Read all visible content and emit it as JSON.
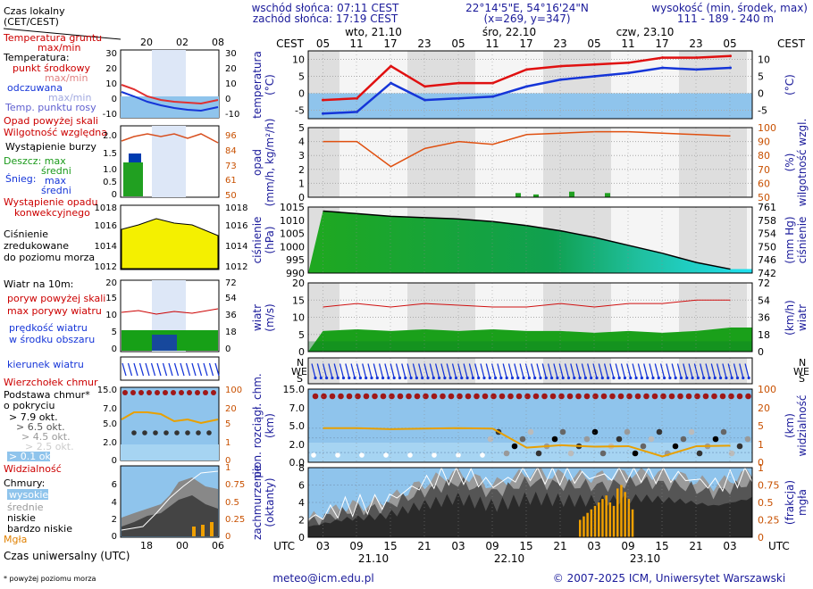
{
  "header": {
    "sunrise": "wschód słońca: 07:11 CEST",
    "sunset": "zachód słońca: 17:19 CEST",
    "coords": "22°14'5\"E, 54°16'24\"N",
    "grid": "(x=269, y=347)",
    "altitude_title": "wysokość (min, środek, max)",
    "altitude_values": "111 - 189 - 240 m"
  },
  "legend": {
    "time_local": "Czas lokalny",
    "time_local_sub": "(CET/CEST)",
    "ground_temp": "Temperatura gruntu",
    "ground_temp_sub": "max/min",
    "temperature": "Temperatura:",
    "mid_point": "punkt środkowy",
    "maxmin": "max/min",
    "feels_like": "odczuwana",
    "maxmin2": "max/min",
    "dew_point": "Temp. punktu rosy",
    "rain_above": "Opad powyżej skali",
    "humidity": "Wilgotność względna",
    "storm": "Wystąpienie burzy",
    "rain_max": "Deszcz: max",
    "rain_mean": "średni",
    "snow_max": "max",
    "snow_label": "Śnieg:",
    "snow_mean": "średni",
    "conv_rain_1": "Wystąpienie opadu",
    "conv_rain_2": "konwekcyjnego",
    "pressure_1": "Ciśnienie",
    "pressure_2": "zredukowane",
    "pressure_3": "do poziomu morza",
    "wind_title": "Wiatr na 10m:",
    "gust_above": "poryw powyżej skali",
    "gust_max": "max porywy wiatru",
    "wind_speed_1": "prędkość wiatru",
    "wind_speed_2": "w środku obszaru",
    "wind_dir": "kierunek wiatru",
    "cloud_top": "Wierzchołek chmur",
    "cloud_base_1": "Podstawa chmur*",
    "cloud_base_2": "o pokryciu",
    "okt1": "> 7.9 okt.",
    "okt2": "> 6.5 okt.",
    "okt3": "> 4.5 okt.",
    "okt4": "> 2.5 okt.",
    "okt5": "> 0.1 okt.",
    "visibility": "Widzialność",
    "clouds": "Chmury:",
    "high": "wysokie",
    "mid": "średnie",
    "low": "niskie",
    "very_low": "bardzo niskie",
    "fog": "Mgła",
    "utc": "Czas uniwersalny (UTC)",
    "footnote": "* powyżej poziomu morza",
    "mini_top_ticks": [
      "20",
      "02",
      "08"
    ],
    "mini_bottom_ticks": [
      "18",
      "00",
      "06"
    ]
  },
  "footer": {
    "email": "meteo@icm.edu.pl",
    "copyright": "© 2007-2025 ICM, Uniwersytet Warszawski"
  },
  "axis_top": {
    "label": "CEST",
    "hours": [
      "05",
      "11",
      "17",
      "23",
      "05",
      "11",
      "17",
      "23",
      "05",
      "11",
      "17",
      "23",
      "05"
    ],
    "days": [
      "wto, 21.10",
      "śro, 22.10",
      "czw, 23.10"
    ]
  },
  "axis_bottom": {
    "label": "UTC",
    "hours": [
      "03",
      "09",
      "15",
      "21",
      "03",
      "09",
      "15",
      "21",
      "03",
      "09",
      "15",
      "21",
      "03"
    ],
    "days": [
      "21.10",
      "22.10",
      "23.10"
    ]
  },
  "panels": {
    "temp": {
      "ylabel": "temperatura",
      "unit": "(°C)",
      "ticks": [
        "10",
        "5",
        "0",
        "-5"
      ]
    },
    "rain": {
      "ylabel": "opad",
      "unit": "(mm/h, kg/m²/h)",
      "ticks": [
        "5",
        "4",
        "3",
        "2",
        "1",
        "0"
      ],
      "right_label": "wilgotność wzgl.",
      "right_unit": "(%)",
      "right_ticks": [
        "100",
        "90",
        "80",
        "70",
        "60",
        "50"
      ]
    },
    "press": {
      "ylabel": "ciśnienie",
      "unit": "(hPa)",
      "ticks": [
        "1015",
        "1010",
        "1005",
        "1000",
        "995",
        "990"
      ],
      "right_label": "ciśnienie",
      "right_unit": "(mm Hg)",
      "right_ticks": [
        "761",
        "758",
        "754",
        "750",
        "746",
        "742"
      ]
    },
    "wind": {
      "ylabel": "wiatr",
      "unit": "(m/s)",
      "ticks": [
        "20",
        "15",
        "10",
        "5",
        "0"
      ],
      "right_label": "wiatr",
      "right_unit": "(km/h)",
      "right_ticks": [
        "72",
        "54",
        "36",
        "18",
        "0"
      ]
    },
    "cloudb": {
      "ylabel": "pion. rozciągł. chm.",
      "unit": "(km)",
      "ticks": [
        "15.0",
        "7.0",
        "5.0",
        "2.0",
        "0.0"
      ],
      "right_label": "widzialność",
      "right_unit": "(km)",
      "right_ticks": [
        "100",
        "20",
        "5",
        "1",
        "0"
      ]
    },
    "cover": {
      "ylabel": "zachmurzenie",
      "unit": "(oktanty)",
      "ticks": [
        "8",
        "6",
        "4",
        "2",
        "0"
      ],
      "right_label": "mgła",
      "right_unit": "(frakcja)",
      "right_ticks": [
        "1",
        "0.75",
        "0.5",
        "0.25",
        "0"
      ]
    }
  },
  "chart_data": [
    {
      "type": "line",
      "title": "temperatura",
      "ylabel": "(°C)",
      "ylim": [
        -7.5,
        12.5
      ],
      "x": [
        "21.10 03",
        "21.10 09",
        "21.10 15",
        "21.10 21",
        "22.10 03",
        "22.10 09",
        "22.10 15",
        "22.10 21",
        "23.10 03",
        "23.10 09",
        "23.10 15",
        "23.10 21",
        "24.10 03"
      ],
      "series": [
        {
          "values": [
            -2,
            -1.5,
            8,
            2,
            3,
            3,
            7,
            8,
            8.5,
            9,
            10.5,
            10.5,
            11
          ]
        },
        {
          "values": [
            -6,
            -5.5,
            3,
            -2,
            -1.5,
            -1,
            2,
            4,
            5,
            6,
            7.5,
            7,
            7.5
          ]
        }
      ]
    },
    {
      "type": "bar",
      "title": "opad",
      "ylabel": "(mm/h, kg/m²/h)",
      "ylim": [
        0,
        5
      ],
      "x": [
        "22.10 11",
        "22.10 17",
        "22.10 23",
        "23.10 05"
      ],
      "series": [
        {
          "values": [
            0.3,
            0.2,
            0.4,
            0.3
          ]
        }
      ]
    },
    {
      "type": "line",
      "title": "wilgotność",
      "ylabel": "(%)",
      "ylim": [
        50,
        100
      ],
      "x": [
        "21.10 03",
        "21.10 09",
        "21.10 15",
        "21.10 21",
        "22.10 03",
        "22.10 09",
        "22.10 15",
        "22.10 21",
        "23.10 03",
        "23.10 09",
        "23.10 15",
        "23.10 21",
        "24.10 03"
      ],
      "series": [
        {
          "values": [
            90,
            90,
            72,
            85,
            90,
            88,
            95,
            96,
            97,
            97,
            96,
            95,
            94
          ]
        }
      ]
    },
    {
      "type": "area",
      "title": "ciśnienie",
      "ylabel": "(hPa)",
      "ylim": [
        990,
        1015
      ],
      "x": [
        "21.10 03",
        "21.10 09",
        "21.10 15",
        "21.10 21",
        "22.10 03",
        "22.10 09",
        "22.10 15",
        "22.10 21",
        "23.10 03",
        "23.10 09",
        "23.10 15",
        "23.10 21",
        "24.10 03"
      ],
      "series": [
        {
          "values": [
            1013.5,
            1012.5,
            1011.5,
            1011,
            1010.5,
            1009.5,
            1008,
            1006,
            1003.5,
            1000.5,
            997.5,
            994,
            991.5
          ]
        }
      ]
    },
    {
      "type": "area",
      "title": "wiatr",
      "ylabel": "(m/s)",
      "ylim": [
        0,
        20
      ],
      "x": [
        "21.10 03",
        "21.10 09",
        "21.10 15",
        "21.10 21",
        "22.10 03",
        "22.10 09",
        "22.10 15",
        "22.10 21",
        "23.10 03",
        "23.10 09",
        "23.10 15",
        "23.10 21",
        "24.10 03"
      ],
      "series": [
        {
          "values": [
            6,
            6.5,
            6,
            6.5,
            6,
            6.5,
            6,
            6,
            5.5,
            6,
            5.5,
            6,
            7
          ]
        },
        {
          "values": [
            13,
            14,
            13,
            14,
            13.5,
            13,
            13,
            14,
            13,
            14,
            14,
            15,
            15
          ]
        }
      ]
    },
    {
      "type": "line",
      "title": "widzialność",
      "ylabel": "(km)",
      "ylim": [
        0,
        15
      ],
      "x": [
        "21.10 03",
        "21.10 09",
        "21.10 15",
        "21.10 21",
        "22.10 03",
        "22.10 09",
        "22.10 15",
        "22.10 21",
        "23.10 03",
        "23.10 09",
        "23.10 15",
        "23.10 21",
        "24.10 03"
      ],
      "series": [
        {
          "values": [
            7,
            7,
            6.8,
            6.9,
            7,
            6.9,
            3,
            3.5,
            3.2,
            3.3,
            1.2,
            3.3,
            3.4
          ]
        }
      ]
    },
    {
      "type": "area",
      "title": "zachmurzenie",
      "ylabel": "(oktanty)",
      "ylim": [
        0,
        8
      ],
      "x": [
        "21.10 03",
        "21.10 09",
        "21.10 15",
        "21.10 21",
        "22.10 03",
        "22.10 09",
        "22.10 15",
        "22.10 21",
        "23.10 03",
        "23.10 09",
        "23.10 15",
        "23.10 21",
        "24.10 03"
      ],
      "series": [
        {
          "values": [
            2,
            3.5,
            4,
            6,
            7.5,
            6,
            7.5,
            7,
            7,
            7.5,
            7,
            6,
            7.5
          ]
        }
      ]
    }
  ]
}
